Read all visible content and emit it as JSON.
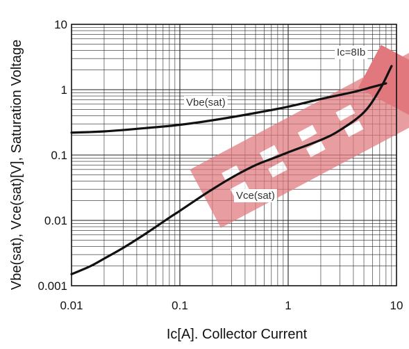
{
  "chart_data": {
    "type": "line",
    "title": "",
    "xlabel": "Ic[A]. Collector Current",
    "ylabel": "Vbe(sat), Vce(sat)[V],  Saturation Voltage",
    "xscale": "log",
    "yscale": "log",
    "xlim": [
      0.01,
      10
    ],
    "ylim": [
      0.001,
      10
    ],
    "grid": true,
    "x_tick_labels": [
      "0.01",
      "0.1",
      "1",
      "10"
    ],
    "y_tick_labels": [
      "0.001",
      "0.01",
      "0.1",
      "1",
      "10"
    ],
    "annotations": [
      "Ic=8Ib",
      "Vbe(sat)",
      "Vce(sat)"
    ],
    "series": [
      {
        "name": "Vbe(sat)",
        "x": [
          0.01,
          0.02,
          0.05,
          0.1,
          0.2,
          0.5,
          1,
          2,
          4,
          6,
          8
        ],
        "y": [
          0.22,
          0.23,
          0.26,
          0.29,
          0.34,
          0.44,
          0.55,
          0.72,
          0.92,
          1.1,
          1.25
        ]
      },
      {
        "name": "Vce(sat)",
        "x": [
          0.01,
          0.015,
          0.02,
          0.03,
          0.05,
          0.08,
          0.1,
          0.15,
          0.2,
          0.3,
          0.5,
          0.8,
          1,
          2,
          3,
          5,
          7,
          9
        ],
        "y": [
          0.0015,
          0.002,
          0.0026,
          0.0038,
          0.0065,
          0.011,
          0.014,
          0.022,
          0.03,
          0.045,
          0.07,
          0.095,
          0.11,
          0.17,
          0.24,
          0.45,
          1.0,
          2.3
        ]
      }
    ],
    "colors": {
      "curve": "#111111",
      "grid": "#222222",
      "watermark": "#e0787d"
    }
  }
}
